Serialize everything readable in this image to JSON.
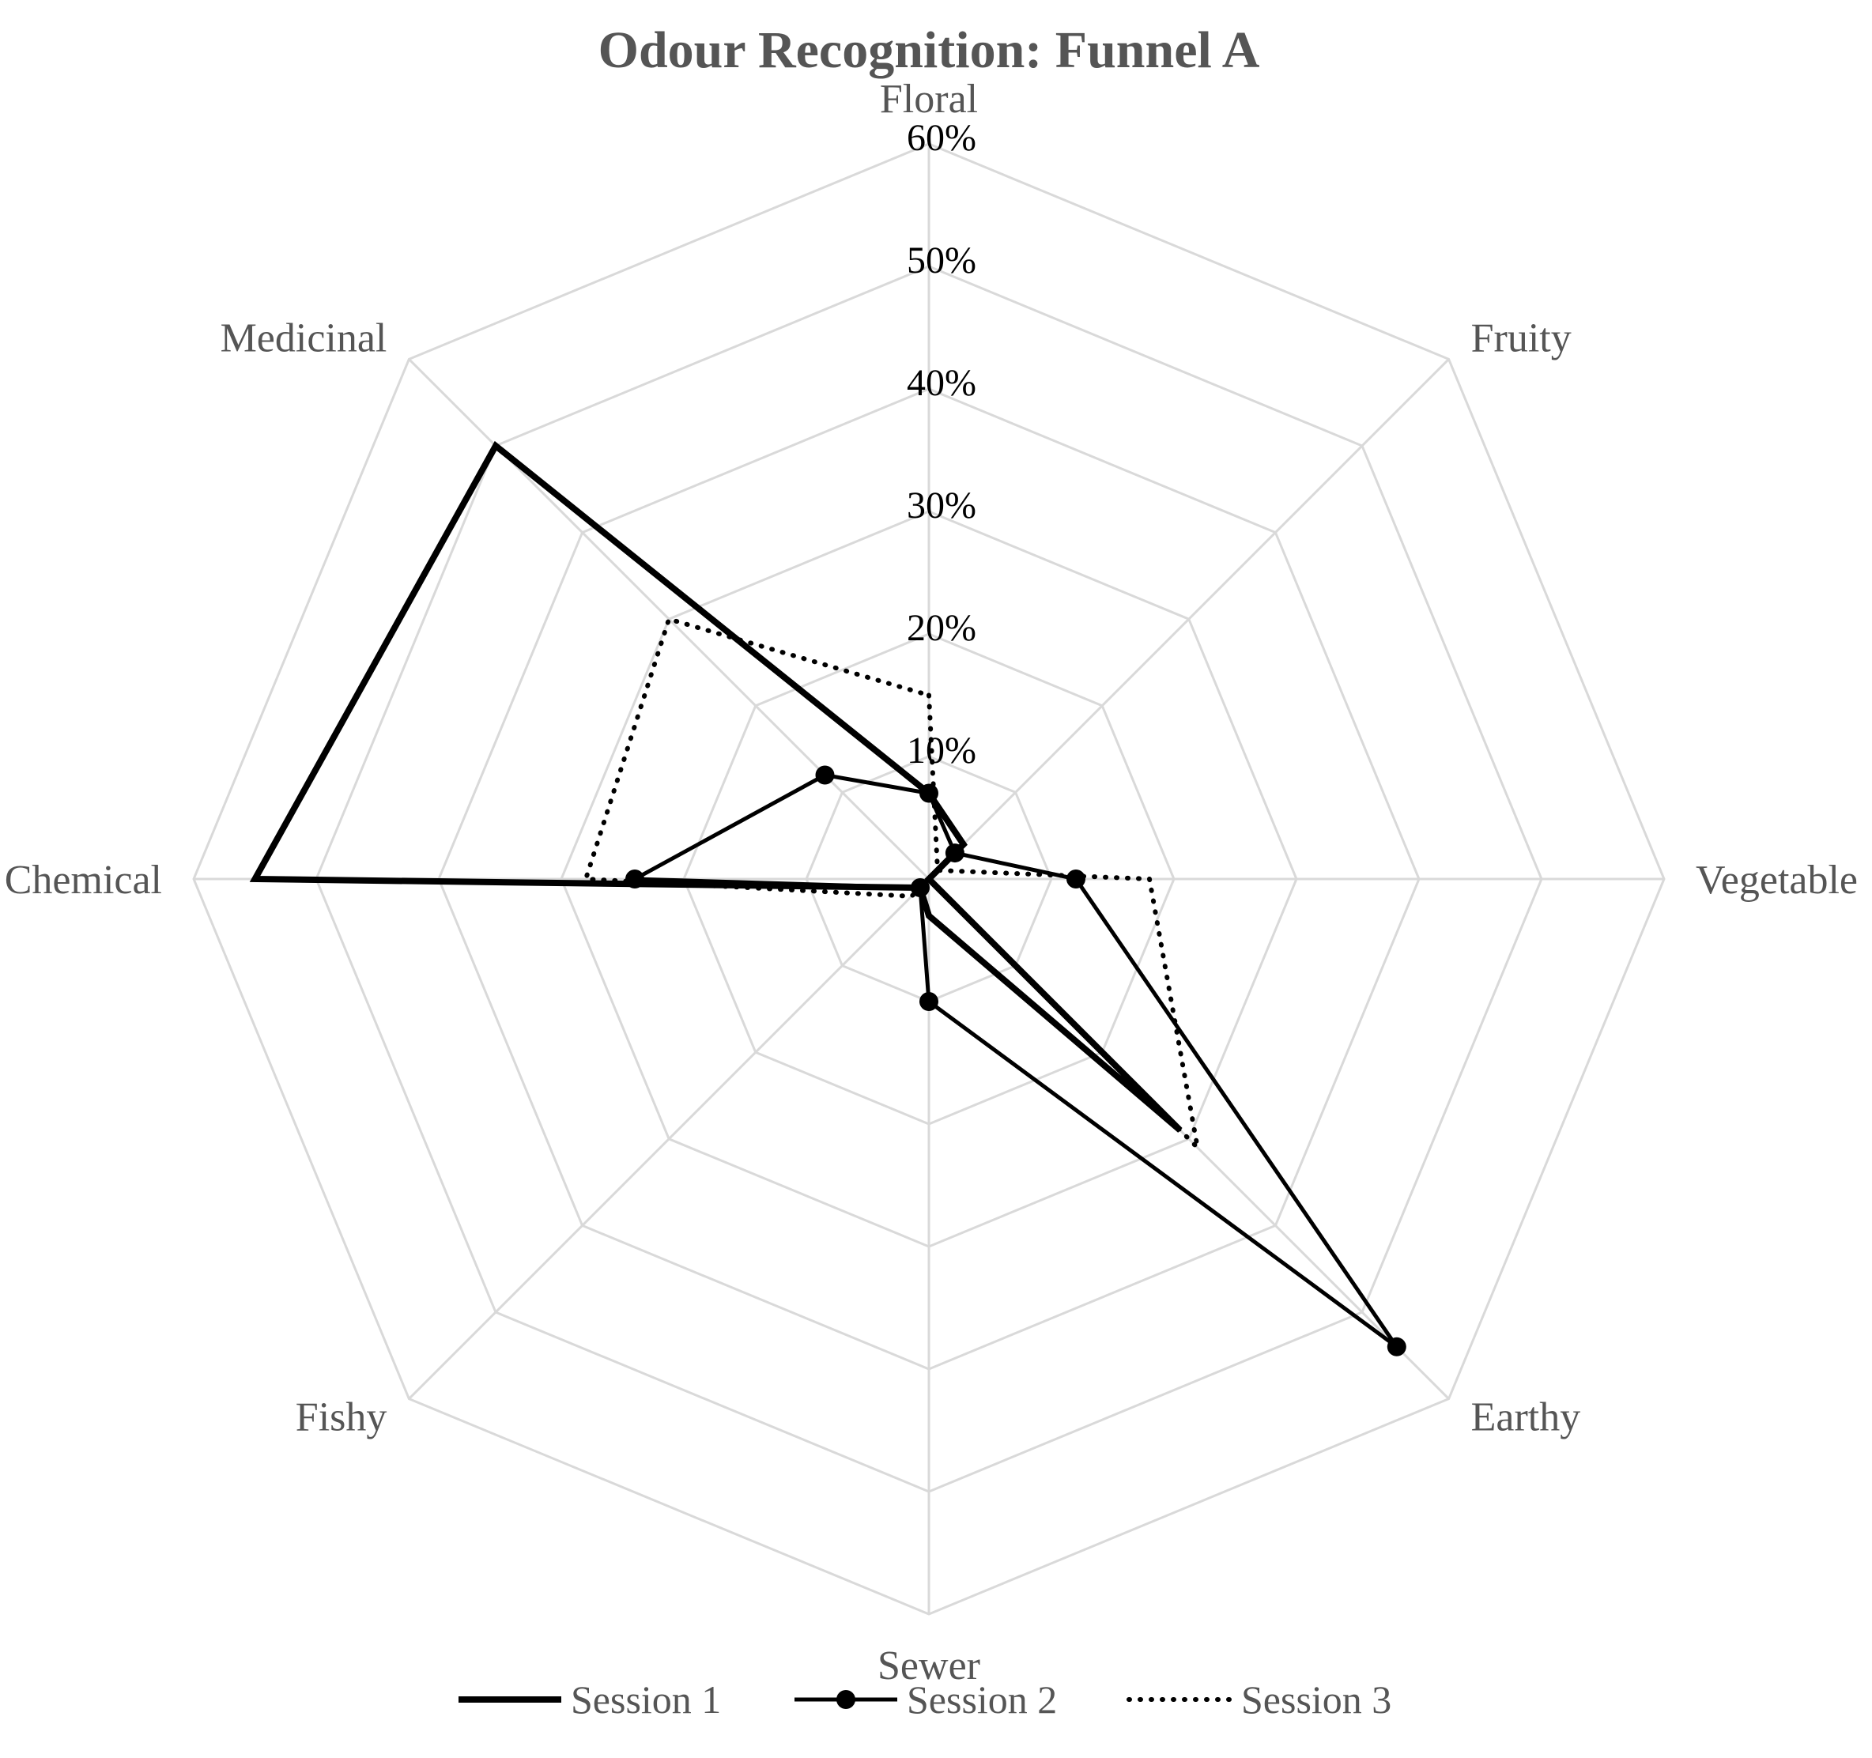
{
  "chart_data": {
    "type": "radar",
    "title": "Odour Recognition: Funnel A",
    "categories": [
      "Floral",
      "Fruity",
      "Vegetable",
      "Earthy",
      "Sewer",
      "Fishy",
      "Chemical",
      "Medicinal"
    ],
    "rlim": [
      0,
      60
    ],
    "ticks": [
      10,
      20,
      30,
      40,
      50,
      60
    ],
    "tick_labels": [
      "10%",
      "20%",
      "30%",
      "40%",
      "50%",
      "60%"
    ],
    "grid": true,
    "legend_position": "bottom",
    "series": [
      {
        "name": "Session 1",
        "style": "solid-thick",
        "values": [
          7,
          4,
          0,
          29,
          3,
          1,
          55,
          50
        ]
      },
      {
        "name": "Session 2",
        "style": "solid-markers",
        "values": [
          7,
          3,
          12,
          54,
          10,
          1,
          24,
          12
        ]
      },
      {
        "name": "Session 3",
        "style": "dotted",
        "values": [
          15,
          1,
          18,
          31,
          0,
          2,
          28,
          30
        ]
      }
    ],
    "colors": {
      "line": "#000000",
      "grid": "#d9d9d9",
      "text": "#555555",
      "tick_text": "#000000"
    }
  }
}
